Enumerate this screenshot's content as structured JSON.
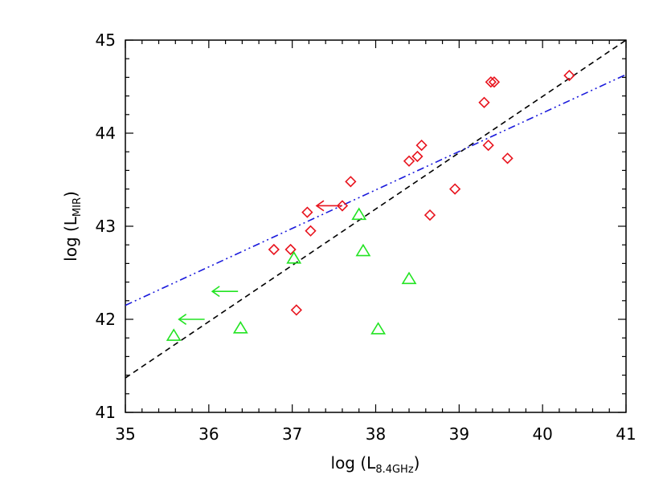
{
  "chart_data": {
    "type": "scatter",
    "title": "",
    "xlabel": {
      "prefix": "log  (L",
      "subscript": "8.4GHz",
      "suffix": ")"
    },
    "ylabel": {
      "prefix": "log  (L",
      "subscript": "MIR",
      "suffix": ")"
    },
    "xlim": [
      35,
      41
    ],
    "ylim": [
      41,
      45
    ],
    "xticks": [
      "35",
      "36",
      "37",
      "38",
      "39",
      "40",
      "41"
    ],
    "yticks": [
      "41",
      "42",
      "43",
      "44",
      "45"
    ],
    "grid": false,
    "legend": "none",
    "series": [
      {
        "marker": "diamond",
        "color": "#e8141e",
        "points": [
          [
            36.78,
            42.75
          ],
          [
            36.98,
            42.75
          ],
          [
            37.05,
            42.1
          ],
          [
            37.18,
            43.15
          ],
          [
            37.22,
            42.95
          ],
          [
            37.6,
            43.22
          ],
          [
            37.7,
            43.48
          ],
          [
            38.4,
            43.7
          ],
          [
            38.5,
            43.75
          ],
          [
            38.55,
            43.87
          ],
          [
            38.65,
            43.12
          ],
          [
            38.95,
            43.4
          ],
          [
            39.3,
            44.33
          ],
          [
            39.35,
            43.87
          ],
          [
            39.38,
            44.55
          ],
          [
            39.42,
            44.55
          ],
          [
            39.58,
            43.73
          ],
          [
            40.32,
            44.62
          ]
        ]
      },
      {
        "marker": "triangle",
        "color": "#22e422",
        "points": [
          [
            35.58,
            41.82
          ],
          [
            36.38,
            41.9
          ],
          [
            37.02,
            42.65
          ],
          [
            37.8,
            43.12
          ],
          [
            37.85,
            42.73
          ],
          [
            38.03,
            41.89
          ],
          [
            38.4,
            42.43
          ]
        ]
      }
    ],
    "upper_limits": [
      {
        "x": 37.6,
        "y": 43.22,
        "direction": "left",
        "color": "#e8141e"
      },
      {
        "x": 36.35,
        "y": 42.3,
        "direction": "left",
        "color": "#22e422"
      },
      {
        "x": 35.95,
        "y": 42.0,
        "direction": "left",
        "color": "#22e422"
      }
    ],
    "fit_lines": [
      {
        "style": "dashed",
        "color": "#000000",
        "from": [
          35,
          41.37
        ],
        "to": [
          41,
          45.0
        ]
      },
      {
        "style": "dash-dot",
        "color": "#1a1adc",
        "from": [
          35,
          42.15
        ],
        "to": [
          41,
          44.63
        ]
      }
    ]
  }
}
